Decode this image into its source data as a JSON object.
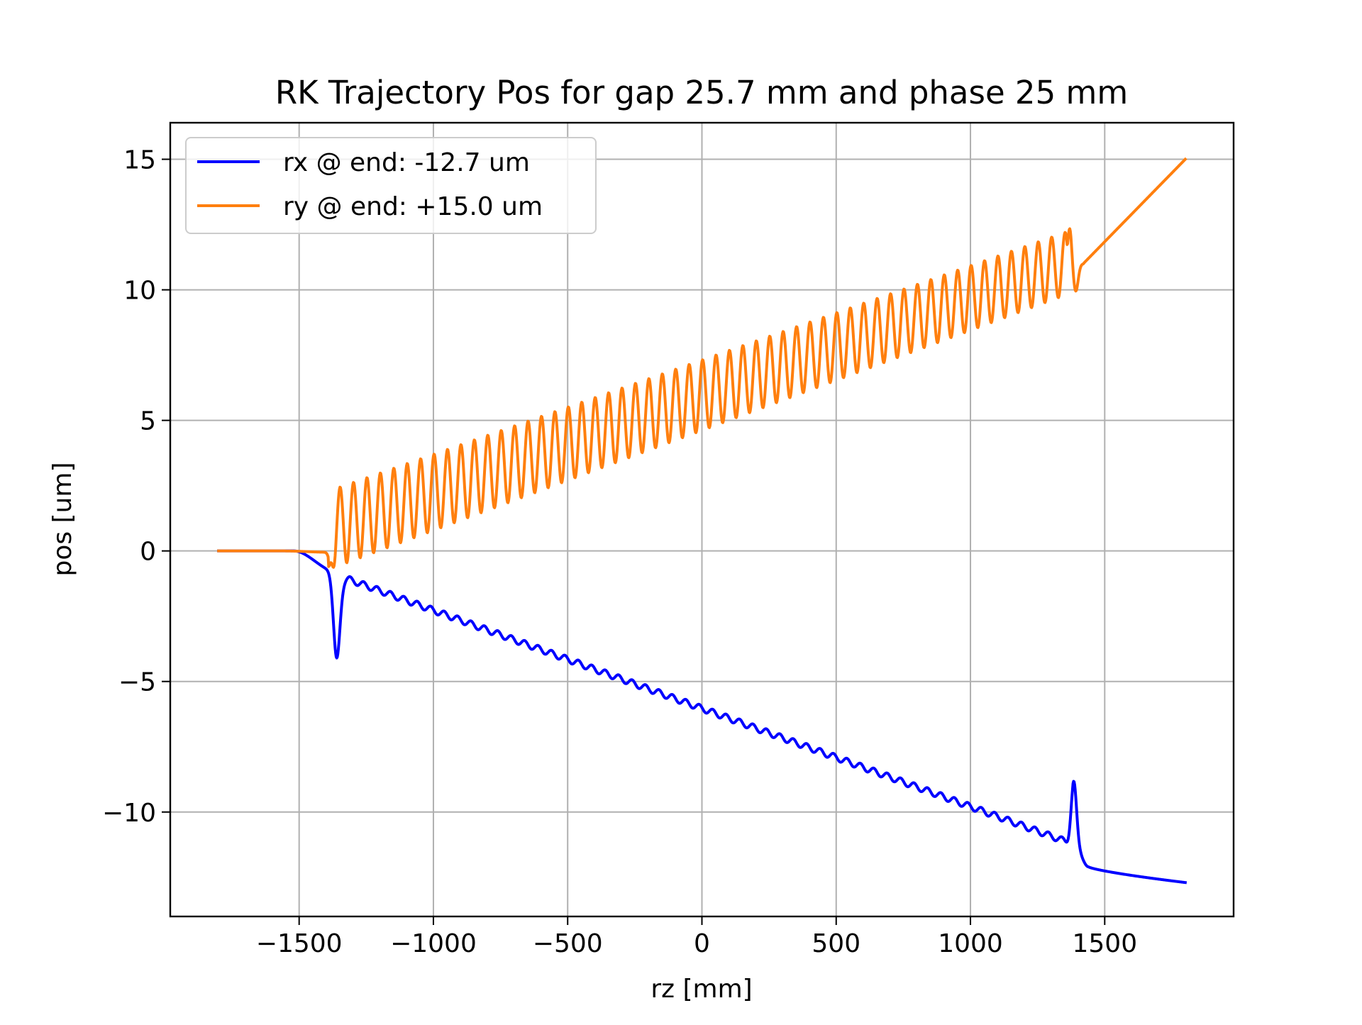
{
  "chart_data": {
    "type": "line",
    "title": "RK Trajectory Pos for gap 25.7 mm and phase 25 mm",
    "xlabel": "rz [mm]",
    "ylabel": "pos [um]",
    "xlim": [
      -1980,
      1980
    ],
    "ylim": [
      -14.0,
      16.4
    ],
    "xticks": [
      -1500,
      -1000,
      -500,
      0,
      500,
      1000,
      1500
    ],
    "xtick_labels": [
      "−1500",
      "−1000",
      "−500",
      "0",
      "500",
      "1000",
      "1500"
    ],
    "yticks": [
      -10,
      -5,
      0,
      5,
      10,
      15
    ],
    "ytick_labels": [
      "−10",
      "−5",
      "0",
      "5",
      "10",
      "15"
    ],
    "grid": true,
    "legend_position": "top-left",
    "series": [
      {
        "name": "rx @ end: -12.7 um",
        "color": "#0000ff",
        "model": {
          "x_start": -1800,
          "x_end": 1800,
          "undulator_start": -1360,
          "undulator_end": 1380,
          "entry_dip_x": -1360,
          "entry_dip_value": -3.7,
          "exit_peak_x": 1385,
          "exit_peak_value": -8.8,
          "value_at_undulator_start": -0.8,
          "value_at_undulator_end": -11.1,
          "value_after_exit": -12.1,
          "value_at_end": -12.7,
          "oscillation_amplitude": 0.12,
          "oscillation_period": 50
        }
      },
      {
        "name": "ry @ end: +15.0 um",
        "color": "#ff7f0e",
        "model": {
          "x_start": -1800,
          "x_end": 1800,
          "undulator_start": -1360,
          "undulator_end": 1380,
          "entry_dip_x": -1380,
          "entry_dip_value": -0.6,
          "exit_peak_x": 1370,
          "exit_peak_value": 12.4,
          "exit_trough_x": 1392,
          "exit_trough_value": 9.9,
          "center_at_undulator_start": 0.9,
          "center_at_undulator_end": 11.1,
          "oscillation_amplitude_start": 1.5,
          "oscillation_amplitude_end": 1.2,
          "oscillation_period": 50,
          "value_after_exit": 11.0,
          "value_at_end": 15.0
        }
      }
    ]
  }
}
